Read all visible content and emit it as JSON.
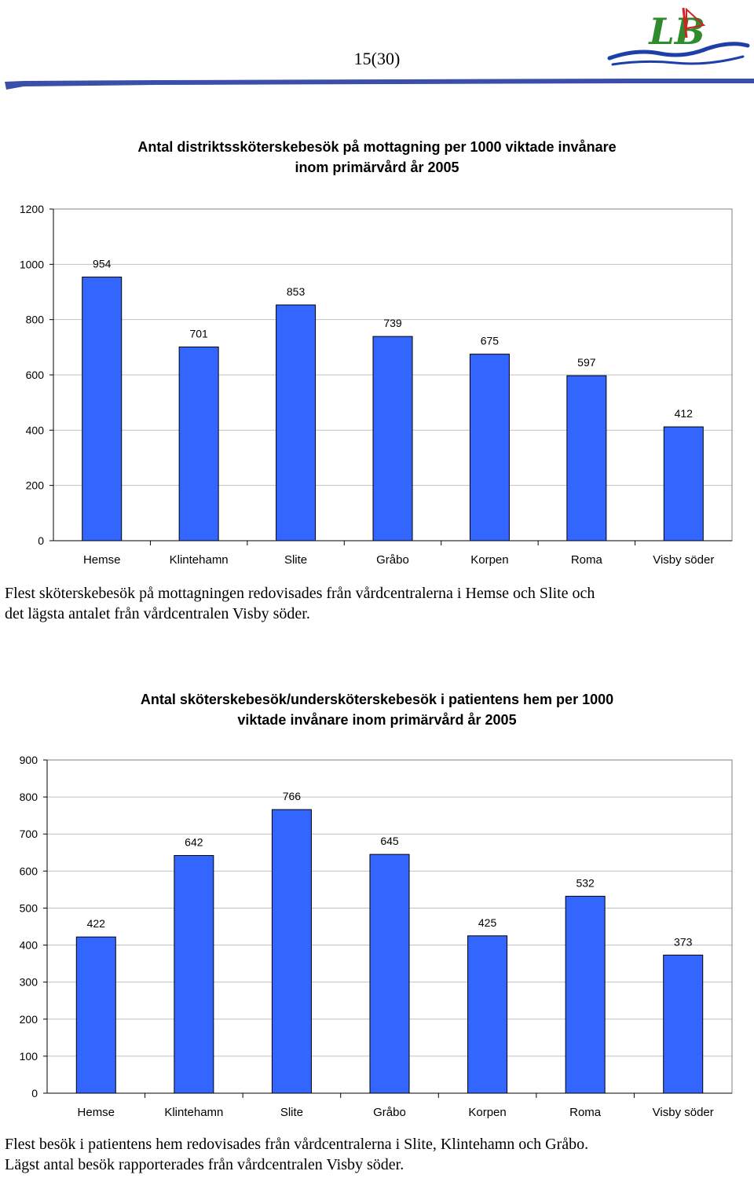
{
  "page": {
    "number": "15(30)"
  },
  "colors": {
    "bar": "#3366ff",
    "bar_stroke": "#000000",
    "grid": "#c0c0c0",
    "axis": "#000000",
    "header_rule": "#3a4fa8",
    "logo_red": "#d42020",
    "logo_green": "#2e8b2e",
    "logo_blue": "#1d3fa8"
  },
  "logo": {
    "icon": "lb-logo-icon",
    "letters": "LB"
  },
  "chart1": {
    "title_line1": "Antal distriktssköterskebesök på mottagning per 1000 viktade invånare",
    "title_line2": "inom primärvård år 2005"
  },
  "caption1": {
    "line1": "Flest sköterskebesök på mottagningen redovisades från vårdcentralerna i Hemse och Slite och",
    "line2": "det lägsta antalet från vårdcentralen Visby söder."
  },
  "chart2": {
    "title_line1": "Antal sköterskebesök/undersköterskebesök i patientens hem per 1000",
    "title_line2": "viktade invånare inom primärvård år 2005"
  },
  "caption2": {
    "line1": "Flest besök i patientens hem redovisades från vårdcentralerna i Slite, Klintehamn och Gråbo.",
    "line2": "Lägst antal besök rapporterades från vårdcentralen Visby söder."
  },
  "chart_data": [
    {
      "type": "bar",
      "title": "Antal distriktssköterskebesök på mottagning per 1000 viktade invånare inom primärvård år 2005",
      "categories": [
        "Hemse",
        "Klintehamn",
        "Slite",
        "Gråbo",
        "Korpen",
        "Roma",
        "Visby söder"
      ],
      "values": [
        954,
        701,
        853,
        739,
        675,
        597,
        412
      ],
      "ylim": [
        0,
        1200
      ],
      "yticks": [
        "0",
        "200",
        "400",
        "600",
        "800",
        "1000",
        "1200"
      ],
      "grid": true,
      "legend": "none"
    },
    {
      "type": "bar",
      "title": "Antal sköterskebesök/undersköterskebesök i patientens hem per 1000 viktade invånare inom primärvård år 2005",
      "categories": [
        "Hemse",
        "Klintehamn",
        "Slite",
        "Gråbo",
        "Korpen",
        "Roma",
        "Visby söder"
      ],
      "values": [
        422,
        642,
        766,
        645,
        425,
        532,
        373
      ],
      "ylim": [
        0,
        900
      ],
      "yticks": [
        "0",
        "100",
        "200",
        "300",
        "400",
        "500",
        "600",
        "700",
        "800",
        "900"
      ],
      "grid": true,
      "legend": "none"
    }
  ]
}
